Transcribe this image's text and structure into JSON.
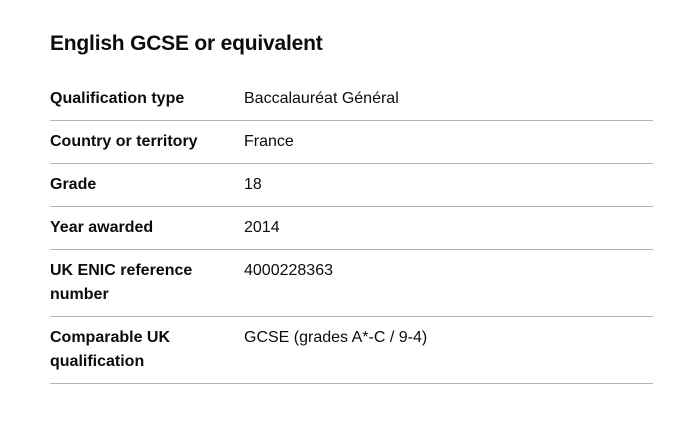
{
  "section": {
    "heading": "English GCSE or equivalent"
  },
  "rows": [
    {
      "key": "Qualification type",
      "value": "Baccalauréat Général"
    },
    {
      "key": "Country or territory",
      "value": "France"
    },
    {
      "key": "Grade",
      "value": "18"
    },
    {
      "key": "Year awarded",
      "value": "2014"
    },
    {
      "key": "UK ENIC reference number",
      "value": "4000228363"
    },
    {
      "key": "Comparable UK qualification",
      "value": "GCSE (grades A*-C / 9-4)"
    }
  ]
}
